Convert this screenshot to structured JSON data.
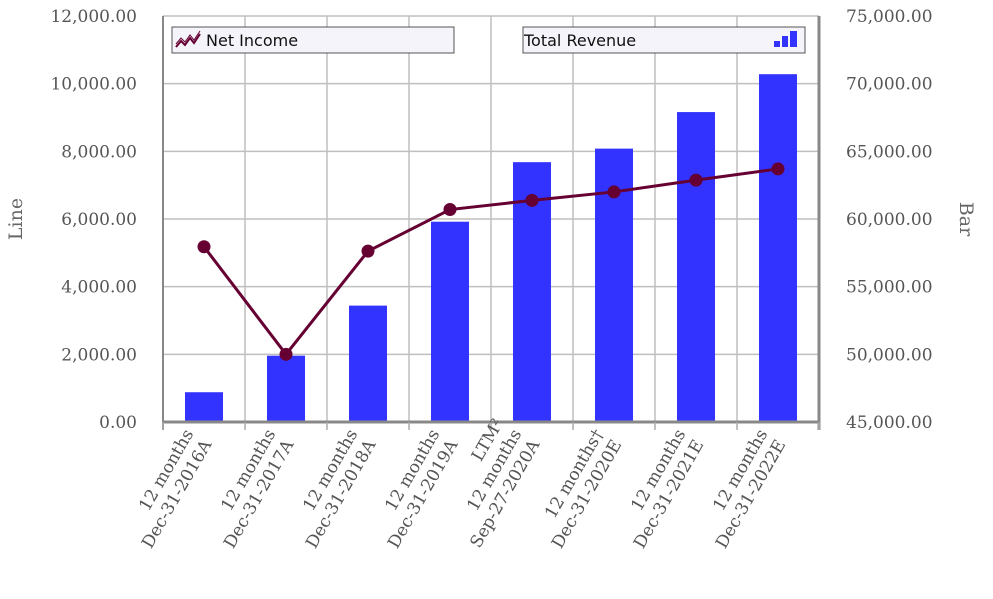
{
  "chart_data": {
    "type": "bar",
    "categories": [
      [
        "12 months",
        "Dec-31-2016A"
      ],
      [
        "12 months",
        "Dec-31-2017A"
      ],
      [
        "12 months",
        "Dec-31-2018A"
      ],
      [
        "12 months",
        "Dec-31-2019A"
      ],
      [
        "LTM²",
        "12 months",
        "Sep-27-2020A"
      ],
      [
        "12 months†",
        "Dec-31-2020E"
      ],
      [
        "12 months",
        "Dec-31-2021E"
      ],
      [
        "12 months",
        "Dec-31-2022E"
      ]
    ],
    "series": [
      {
        "name": "Total Revenue",
        "type": "bar",
        "axis": "right",
        "color": "#3333ff",
        "values": [
          47200,
          49900,
          53600,
          59800,
          64200,
          65200,
          67900,
          70700
        ]
      },
      {
        "name": "Net Income",
        "type": "line",
        "axis": "left",
        "color": "#660033",
        "values": [
          5180,
          2000,
          5050,
          6280,
          6550,
          6800,
          7150,
          7480
        ]
      }
    ],
    "ylabel": "Line",
    "y2label": "Bar",
    "ylim": [
      0,
      12000
    ],
    "y2lim": [
      45000,
      75000
    ],
    "yticks": [
      "0.00",
      "2,000.00",
      "4,000.00",
      "6,000.00",
      "8,000.00",
      "10,000.00",
      "12,000.00"
    ],
    "y2ticks": [
      "45,000.00",
      "50,000.00",
      "55,000.00",
      "60,000.00",
      "65,000.00",
      "70,000.00",
      "75,000.00"
    ],
    "grid": true,
    "legend": [
      "Net Income",
      "Total Revenue"
    ]
  }
}
